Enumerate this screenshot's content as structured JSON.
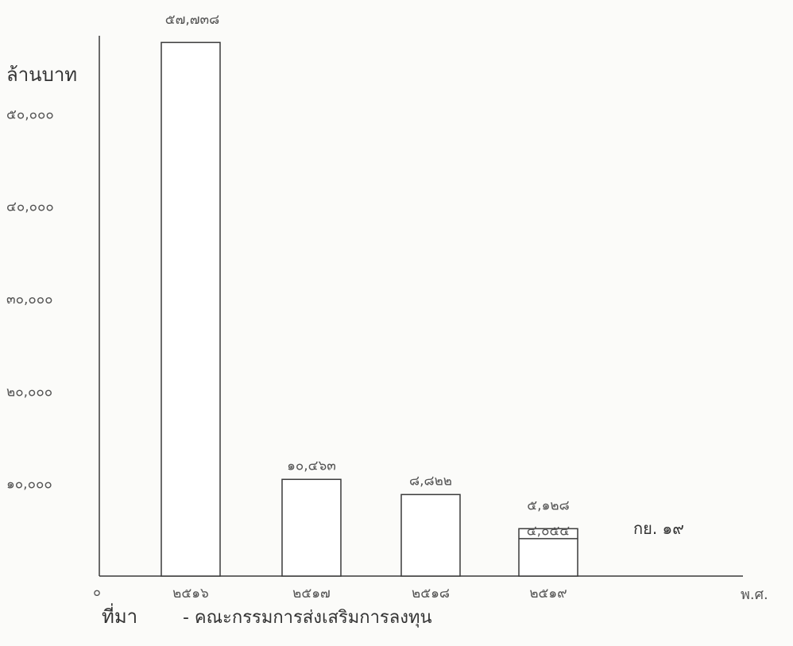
{
  "chart_data": {
    "type": "bar",
    "ylabel": "ล้านบาท",
    "xlabel": "พ.ศ.",
    "origin_label": "๐",
    "ylim": [
      0,
      57000
    ],
    "yticks": [
      {
        "value": 10000,
        "label": "๑๐,๐๐๐"
      },
      {
        "value": 20000,
        "label": "๒๐,๐๐๐"
      },
      {
        "value": 30000,
        "label": "๓๐,๐๐๐"
      },
      {
        "value": 40000,
        "label": "๔๐,๐๐๐"
      },
      {
        "value": 50000,
        "label": "๕๐,๐๐๐"
      }
    ],
    "categories": [
      "๒๕๑๖",
      "๒๕๑๗",
      "๒๕๑๘",
      "๒๕๑๙"
    ],
    "values": [
      57738,
      10463,
      8822,
      5128
    ],
    "value_labels": [
      "๕๗,๗๓๘",
      "๑๐,๔๖๓",
      "๘,๘๒๒",
      "๕,๑๒๘"
    ],
    "inner_marker": {
      "category": "๒๕๑๙",
      "value": 4054,
      "label": "๔,๐๕๔"
    },
    "annotation": "กย. ๑๙",
    "source_label": "ที่มา",
    "source_text": "- คณะกรรมการส่งเสริมการลงทุน",
    "colors": {
      "ink": "#3a3a3a",
      "bar_fill": "#ffffff",
      "background": "#fbfbf9"
    }
  }
}
